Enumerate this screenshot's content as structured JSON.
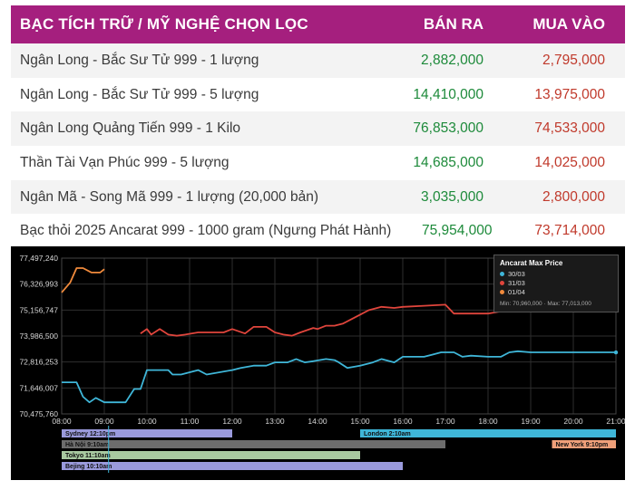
{
  "table": {
    "header": {
      "name": "BẠC TÍCH TRỮ / MỸ NGHỆ CHỌN LỌC",
      "sell": "BÁN RA",
      "buy": "MUA VÀO"
    },
    "rows": [
      {
        "name": "Ngân Long - Bắc Sư Tử  999 - 1 lượng",
        "sell": "2,882,000",
        "buy": "2,795,000"
      },
      {
        "name": "Ngân Long - Bắc Sư Tử  999 - 5 lượng",
        "sell": "14,410,000",
        "buy": "13,975,000"
      },
      {
        "name": "Ngân Long Quảng Tiến 999 - 1 Kilo",
        "sell": "76,853,000",
        "buy": "74,533,000"
      },
      {
        "name": "Thần Tài Vạn Phúc 999 - 5 lượng",
        "sell": "14,685,000",
        "buy": "14,025,000"
      },
      {
        "name": "Ngân Mã - Song Mã 999 - 1 lượng (20,000 bản)",
        "sell": "3,035,000",
        "buy": "2,800,000"
      },
      {
        "name": "Bạc thỏi 2025 Ancarat 999 - 1000 gram (Ngưng Phát Hành)",
        "sell": "75,954,000",
        "buy": "73,714,000"
      }
    ]
  },
  "colors": {
    "header_bg": "#a51f7e",
    "sell_text": "#1d8a3a",
    "buy_text": "#c0392b",
    "series_1": "#3fb6d8",
    "series_2": "#e0453c",
    "series_3": "#f08a3c"
  },
  "chart_data": {
    "type": "line",
    "title": "Ancarat Max Price",
    "legend_position": "top-right",
    "min_label": "Min: 70,960,000",
    "max_label": "Max: 77,013,000",
    "yticks": [
      "77,497,240",
      "76,326,993",
      "75,156,747",
      "73,986,500",
      "72,816,253",
      "71,646,007",
      "70,475,760"
    ],
    "ylim": [
      70475760,
      77497240
    ],
    "xticks": [
      "08:00",
      "09:00",
      "10:00",
      "11:00",
      "12:00",
      "13:00",
      "14:00",
      "15:00",
      "16:00",
      "17:00",
      "18:00",
      "19:00",
      "20:00",
      "21:00"
    ],
    "x_unit": "hours",
    "series": [
      {
        "name": "30/03",
        "color": "#3fb6d8",
        "x": [
          8.0,
          8.35,
          8.5,
          8.65,
          8.8,
          9.0,
          9.3,
          9.5,
          9.7,
          9.85,
          10.0,
          10.5,
          10.6,
          10.8,
          11.2,
          11.4,
          12.0,
          12.2,
          12.5,
          12.8,
          13.0,
          13.3,
          13.5,
          13.7,
          13.9,
          14.2,
          14.4,
          14.5,
          14.7,
          15.0,
          15.3,
          15.5,
          15.8,
          16.0,
          16.5,
          16.7,
          16.9,
          17.2,
          17.4,
          17.6,
          18.0,
          18.3,
          18.5,
          18.7,
          19.0,
          19.5,
          20.0,
          21.0
        ],
        "values": [
          71900000,
          71900000,
          71250000,
          71000000,
          71200000,
          71000000,
          71000000,
          71000000,
          71600000,
          71600000,
          72450000,
          72450000,
          72250000,
          72250000,
          72450000,
          72250000,
          72450000,
          72550000,
          72650000,
          72650000,
          72800000,
          72800000,
          72950000,
          72800000,
          72850000,
          72950000,
          72900000,
          72800000,
          72550000,
          72650000,
          72800000,
          72950000,
          72800000,
          73050000,
          73050000,
          73150000,
          73250000,
          73250000,
          73050000,
          73100000,
          73050000,
          73050000,
          73250000,
          73300000,
          73250000,
          73250000,
          73250000,
          73250000
        ]
      },
      {
        "name": "31/03",
        "color": "#e0453c",
        "x": [
          9.85,
          10.0,
          10.1,
          10.3,
          10.5,
          10.7,
          10.9,
          11.2,
          11.5,
          11.8,
          12.0,
          12.3,
          12.5,
          12.8,
          13.0,
          13.2,
          13.4,
          13.6,
          13.9,
          14.0,
          14.2,
          14.4,
          14.6,
          14.8,
          15.0,
          15.2,
          15.5,
          15.8,
          16.0,
          16.5,
          17.0,
          17.2,
          17.6,
          18.0,
          18.3,
          18.5
        ],
        "values": [
          74100000,
          74300000,
          74050000,
          74300000,
          74050000,
          74000000,
          74050000,
          74150000,
          74150000,
          74150000,
          74300000,
          74100000,
          74400000,
          74400000,
          74150000,
          74050000,
          74000000,
          74150000,
          74350000,
          74300000,
          74450000,
          74450000,
          74550000,
          74750000,
          74950000,
          75150000,
          75300000,
          75250000,
          75300000,
          75350000,
          75400000,
          75000000,
          75000000,
          75000000,
          75100000,
          75100000
        ]
      },
      {
        "name": "01/04",
        "color": "#f08a3c",
        "x": [
          8.0,
          8.2,
          8.35,
          8.5,
          8.7,
          8.9,
          9.0
        ],
        "values": [
          75950000,
          76400000,
          77050000,
          77050000,
          76850000,
          76850000,
          77000000
        ]
      }
    ]
  },
  "sessions": [
    {
      "label": "Sydney 12:10pm",
      "color": "#9a9adc",
      "start": 8.0,
      "end": 12.0,
      "row": 0
    },
    {
      "label": "London 2:10am",
      "color": "#3fb6d8",
      "start": 15.0,
      "end": 21.0,
      "row": 0
    },
    {
      "label": "Hà Nội 9:10am",
      "color": "#6d6d6d",
      "start": 8.0,
      "end": 17.0,
      "row": 1
    },
    {
      "label": "New York 9:10pm",
      "color": "#f0a07a",
      "start": 19.5,
      "end": 21.0,
      "row": 1
    },
    {
      "label": "Tokyo 11:10am",
      "color": "#a8c9a0",
      "start": 8.0,
      "end": 15.0,
      "row": 2
    },
    {
      "label": "Bejing 10:10am",
      "color": "#9a9adc",
      "start": 8.0,
      "end": 16.0,
      "row": 3
    }
  ]
}
